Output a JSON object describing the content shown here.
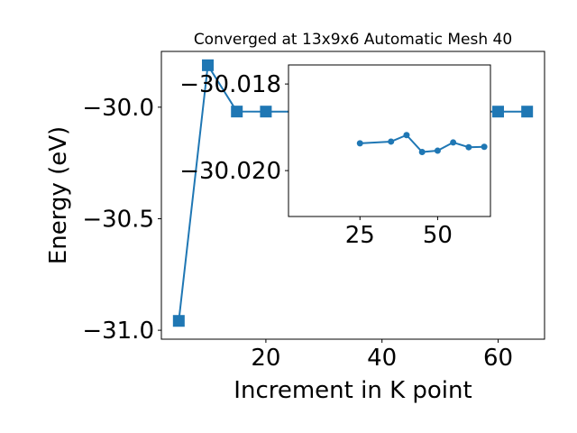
{
  "chart_data": [
    {
      "type": "line",
      "title": "Converged at 13x9x6 Automatic Mesh 40",
      "xlabel": "Increment in K point",
      "ylabel": "Energy (eV)",
      "xlim": [
        2,
        68
      ],
      "ylim": [
        -31.04,
        -29.75
      ],
      "xticks": [
        20,
        40,
        60
      ],
      "yticks": [
        -31.0,
        -30.5,
        -30.0
      ],
      "ytick_labels": [
        "−31.0",
        "−30.5",
        "−30.0"
      ],
      "grid": false,
      "color": "#1f77b4",
      "marker": "square",
      "series": [
        {
          "x": [
            5,
            10,
            15,
            20,
            25,
            30,
            35,
            40,
            45,
            50,
            55,
            60,
            65
          ],
          "values": [
            -30.958,
            -29.812,
            -30.0195,
            -30.0197,
            -30.0198,
            -30.0198,
            -30.0197,
            -30.0199,
            -30.0199,
            -30.0198,
            -30.0198,
            -30.0198,
            -30.0198
          ]
        }
      ]
    },
    {
      "type": "line",
      "title": "",
      "xlabel": "",
      "ylabel": "",
      "xlim": [
        2,
        67
      ],
      "ylim": [
        -30.02106,
        -30.01756
      ],
      "xticks": [
        25,
        50
      ],
      "yticks": [
        -30.02,
        -30.018
      ],
      "ytick_labels": [
        "−30.020",
        "−30.018"
      ],
      "grid": false,
      "color": "#1f77b4",
      "marker": "circle",
      "series": [
        {
          "x": [
            25,
            35,
            40,
            45,
            50,
            55,
            60,
            65
          ],
          "values": [
            -30.01937,
            -30.01933,
            -30.01918,
            -30.01957,
            -30.01954,
            -30.01935,
            -30.01946,
            -30.01945
          ]
        }
      ]
    }
  ]
}
